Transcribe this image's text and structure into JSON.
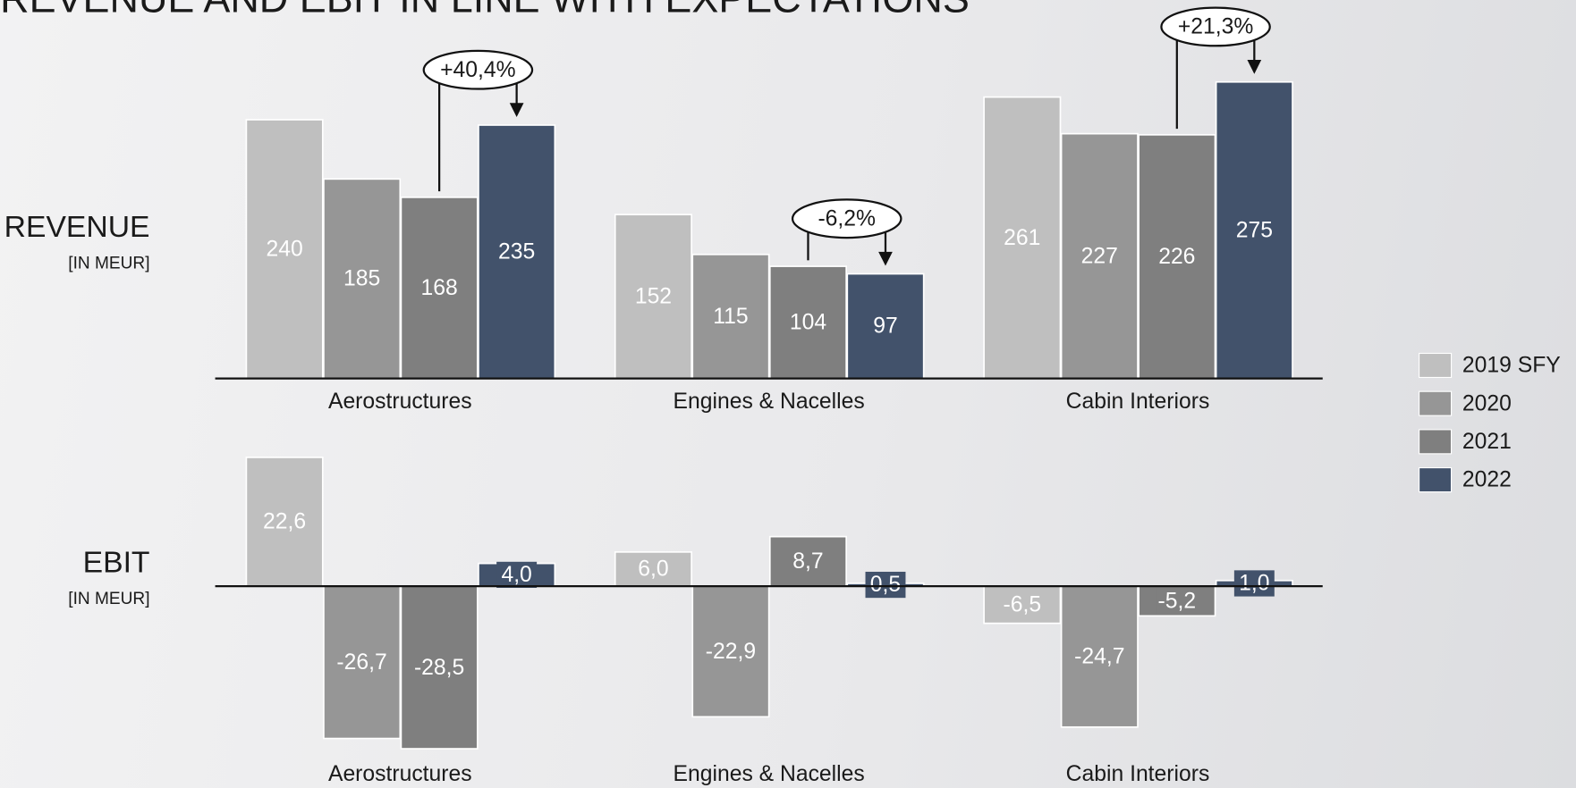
{
  "title": "REVENUE AND EBIT IN LINE WITH EXPECTATIONS",
  "chart_data": [
    {
      "type": "bar",
      "ylabel": "REVENUE",
      "unit": "[IN MEUR]",
      "categories": [
        "Aerostructures",
        "Engines & Nacelles",
        "Cabin Interiors"
      ],
      "series": [
        {
          "name": "2019 SFY",
          "color": "#bfbfbf",
          "values": [
            240,
            152,
            261
          ]
        },
        {
          "name": "2020",
          "color": "#969696",
          "values": [
            185,
            115,
            227
          ]
        },
        {
          "name": "2021",
          "color": "#7f7f7f",
          "values": [
            168,
            104,
            226
          ]
        },
        {
          "name": "2022",
          "color": "#42526b",
          "values": [
            235,
            97,
            275
          ]
        }
      ],
      "annotations": [
        "+40,4%",
        "-6,2%",
        "+21,3%"
      ]
    },
    {
      "type": "bar",
      "ylabel": "EBIT",
      "unit": "[IN MEUR]",
      "categories": [
        "Aerostructures",
        "Engines & Nacelles",
        "Cabin Interiors"
      ],
      "series": [
        {
          "color": "#bfbfbf",
          "values": [
            22.6,
            6.0,
            -6.5
          ],
          "value_labels": [
            "22,6",
            "6,0",
            "-6,5"
          ]
        },
        {
          "color": "#969696",
          "values": [
            -26.7,
            -22.9,
            -24.7
          ],
          "value_labels": [
            "-26,7",
            "-22,9",
            "-24,7"
          ]
        },
        {
          "color": "#7f7f7f",
          "values": [
            -28.5,
            8.7,
            -5.2
          ],
          "value_labels": [
            "-28,5",
            "8,7",
            "-5,2"
          ]
        },
        {
          "color": "#42526b",
          "values": [
            4.0,
            0.5,
            1.0
          ],
          "value_labels": [
            "4,0",
            "0,5",
            "1,0"
          ]
        }
      ]
    }
  ]
}
